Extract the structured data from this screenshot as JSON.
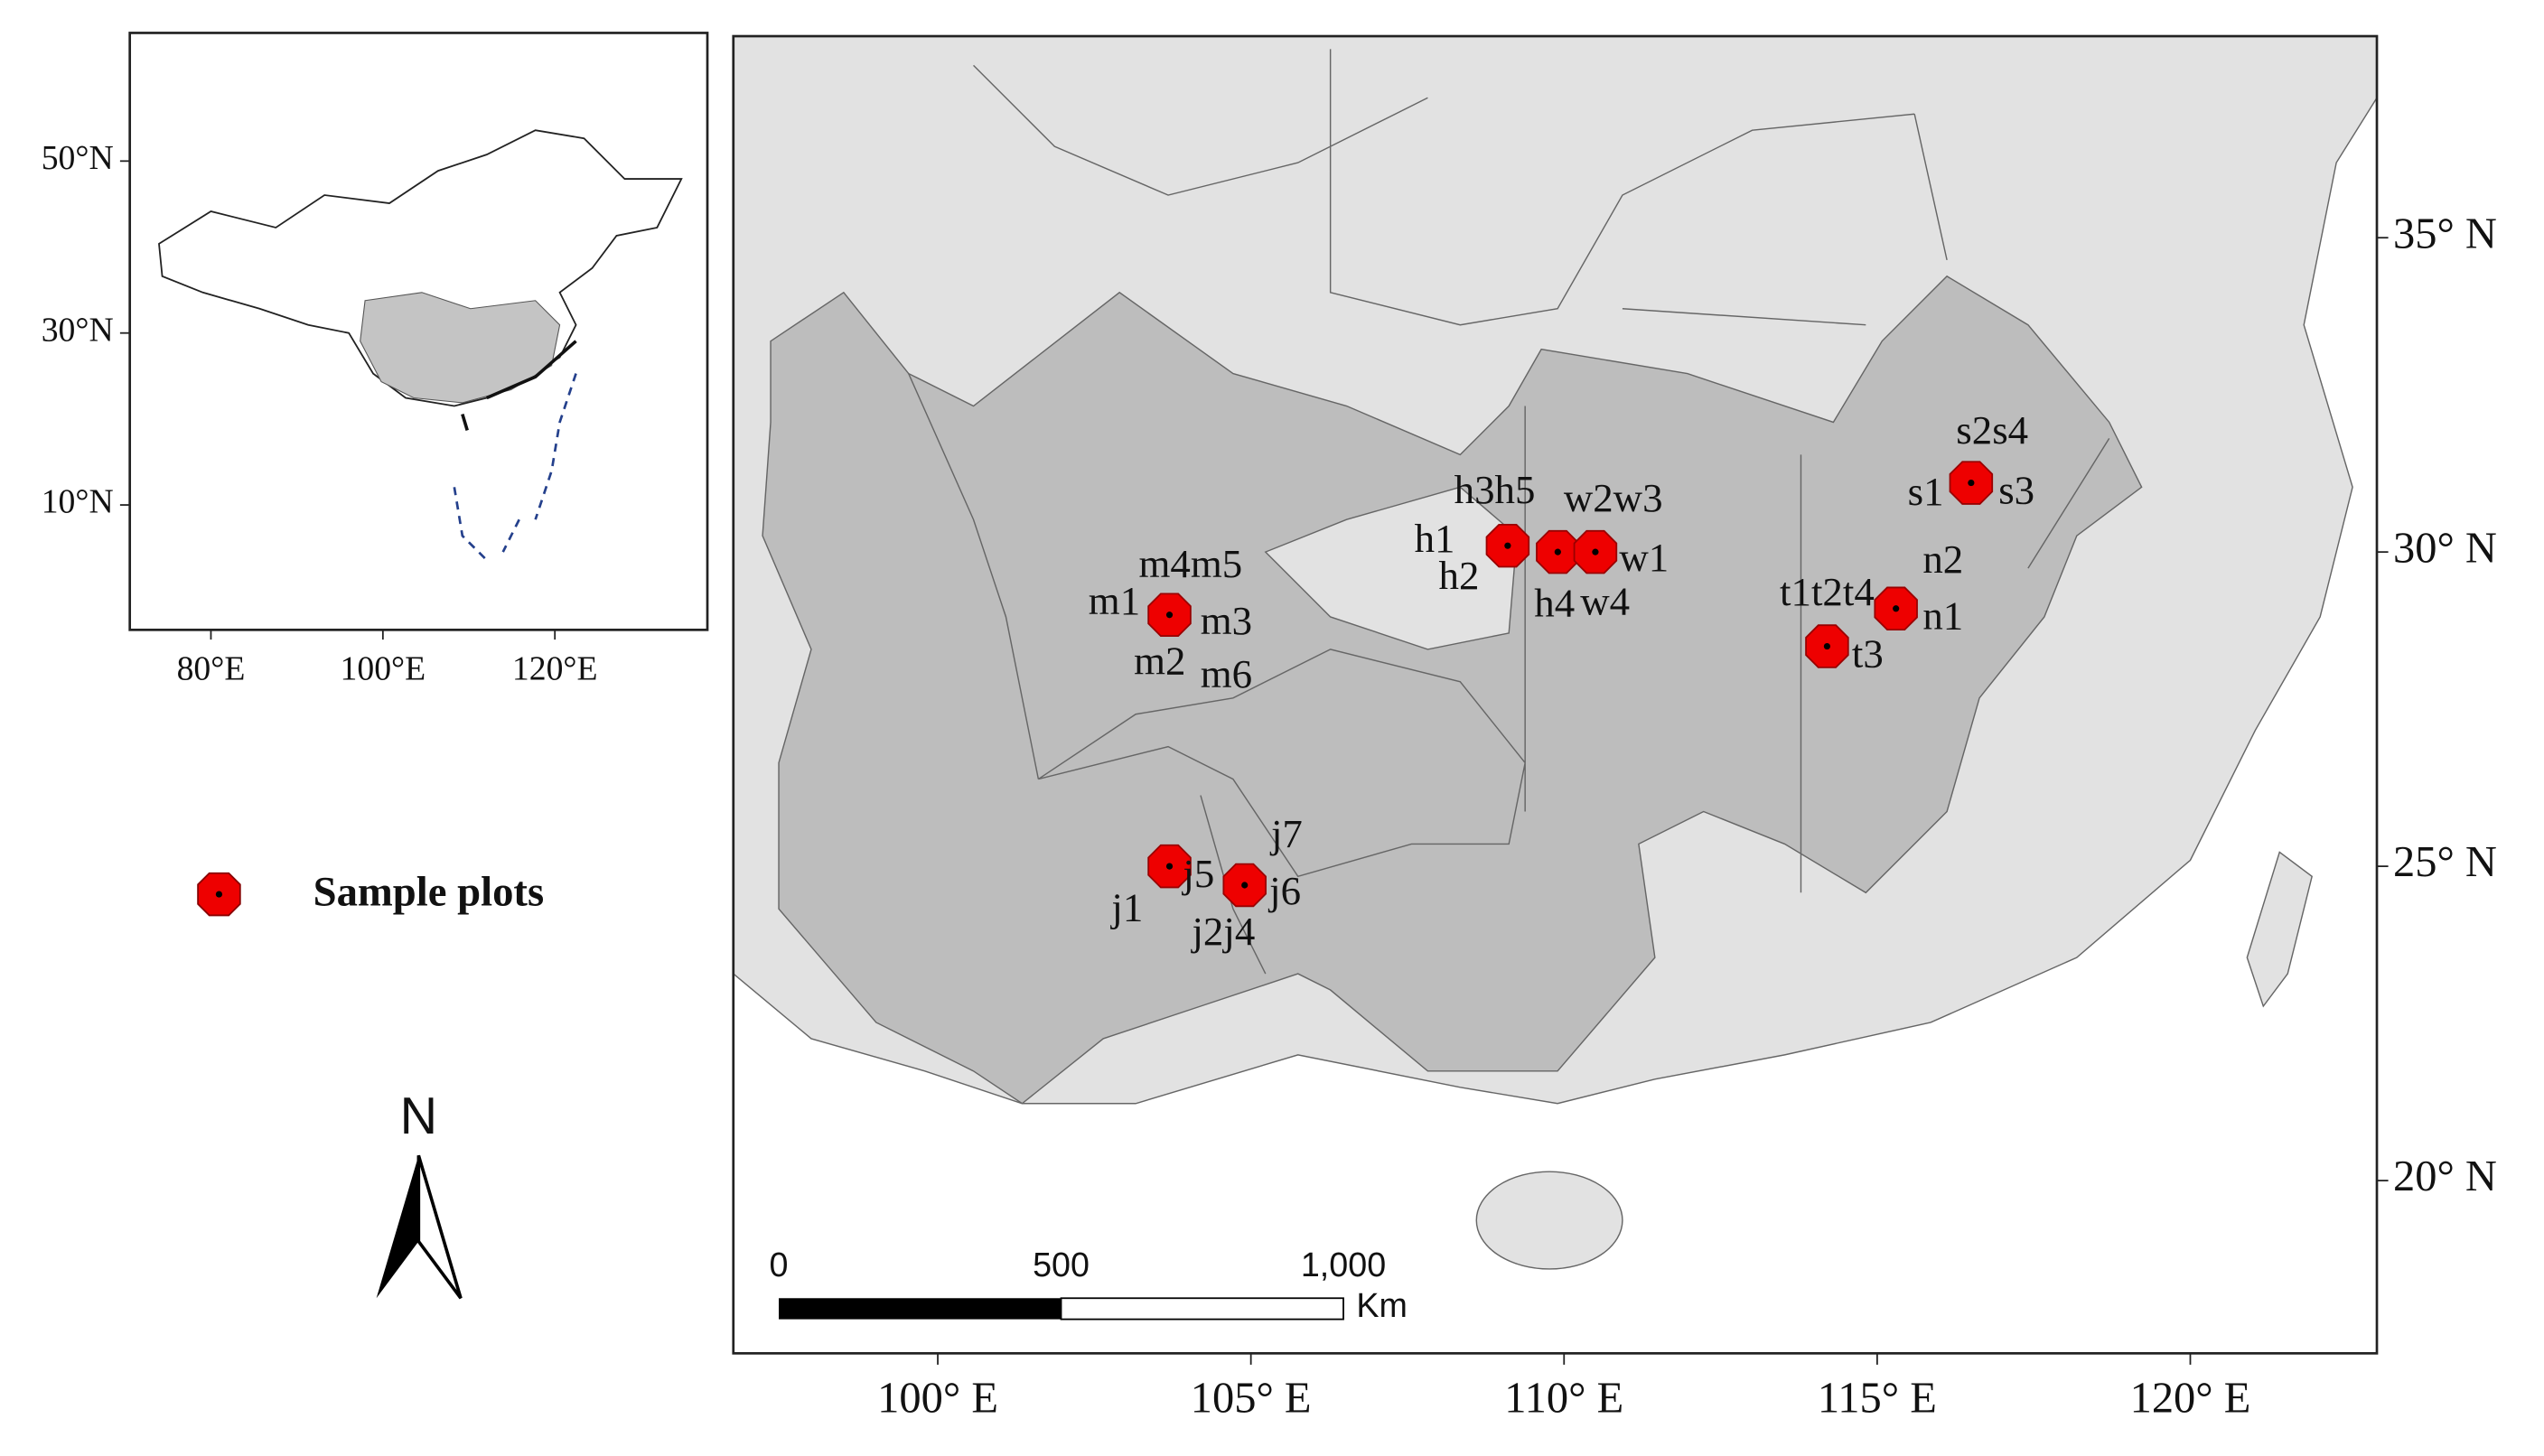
{
  "inset": {
    "xticks": [
      {
        "value": 80,
        "label": "80°E"
      },
      {
        "value": 100,
        "label": "100°E"
      },
      {
        "value": 120,
        "label": "120°E"
      }
    ],
    "yticks": [
      {
        "value": 50,
        "label": "50°N"
      },
      {
        "value": 30,
        "label": "30°N"
      },
      {
        "value": 10,
        "label": "10°N"
      }
    ]
  },
  "main": {
    "xticks": [
      {
        "value": 100,
        "label": "100° E"
      },
      {
        "value": 105,
        "label": "105° E"
      },
      {
        "value": 110,
        "label": "110° E"
      },
      {
        "value": 115,
        "label": "115° E"
      },
      {
        "value": 120,
        "label": "120° E"
      }
    ],
    "yticks": [
      {
        "value": 35,
        "label": "35° N"
      },
      {
        "value": 30,
        "label": "30° N"
      },
      {
        "value": 25,
        "label": "25° N"
      },
      {
        "value": 20,
        "label": "20° N"
      }
    ]
  },
  "sample_plots": [
    {
      "lon": 103.7,
      "lat": 29.0,
      "labels": [
        "m4m5",
        "m1",
        "m3",
        "m2",
        "m6"
      ]
    },
    {
      "lon": 109.1,
      "lat": 30.1,
      "labels": [
        "h3h5",
        "h1",
        "h2"
      ]
    },
    {
      "lon": 109.9,
      "lat": 30.0,
      "labels": [
        "h4"
      ]
    },
    {
      "lon": 110.5,
      "lat": 30.0,
      "labels": [
        "w2w3",
        "w1",
        "w4"
      ]
    },
    {
      "lon": 114.2,
      "lat": 28.5,
      "labels": [
        "t1t2t4",
        "t3"
      ]
    },
    {
      "lon": 115.3,
      "lat": 29.1,
      "labels": [
        "n2",
        "n1"
      ]
    },
    {
      "lon": 116.5,
      "lat": 31.1,
      "labels": [
        "s2s4",
        "s1",
        "s3"
      ]
    },
    {
      "lon": 103.7,
      "lat": 25.0,
      "labels": [
        "j5",
        "j1"
      ]
    },
    {
      "lon": 104.9,
      "lat": 24.7,
      "labels": [
        "j7",
        "j6",
        "j2j4"
      ]
    }
  ],
  "legend": {
    "label": "Sample plots"
  },
  "north_arrow": {
    "label": "N"
  },
  "scale_bar": {
    "ticks": [
      0,
      500,
      {
        "value": 1000,
        "label": "1,000"
      }
    ],
    "unit": "Km"
  }
}
